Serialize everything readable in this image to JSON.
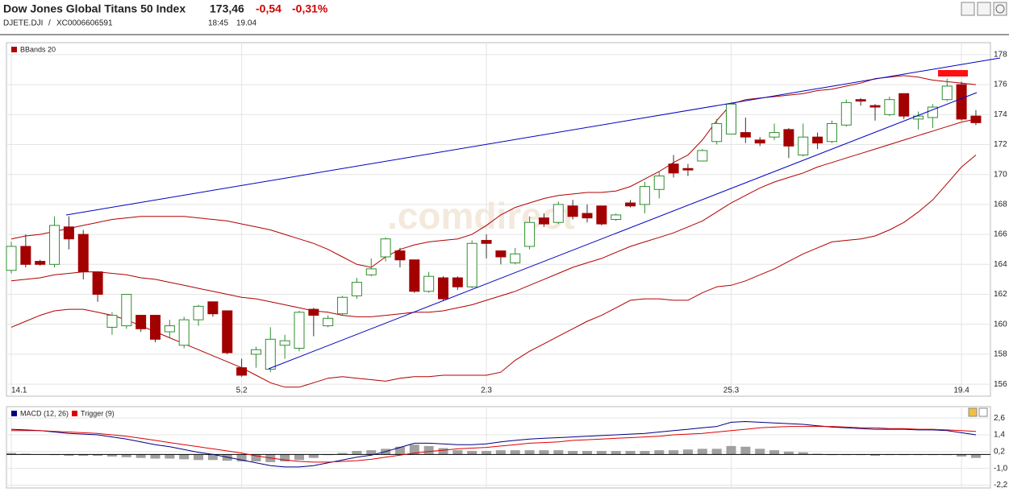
{
  "header": {
    "title": "Dow Jones Global Titans 50 Index",
    "price": "173,46",
    "change": "-0,54",
    "change_percent": "-0,31%",
    "symbol": "DJETE.DJI",
    "separator": "/",
    "isin": "XC0006606591",
    "time": "18:45",
    "date": "19.04"
  },
  "chart_data": [
    {
      "type": "candlestick",
      "watermark": ".comdirect",
      "categories": [
        "14.1",
        null,
        null,
        null,
        null,
        null,
        null,
        null,
        null,
        null,
        null,
        null,
        null,
        null,
        null,
        null,
        "5.2",
        null,
        null,
        null,
        null,
        null,
        null,
        null,
        null,
        null,
        null,
        null,
        null,
        null,
        null,
        null,
        null,
        "2.3",
        null,
        null,
        null,
        null,
        null,
        null,
        null,
        null,
        null,
        null,
        null,
        null,
        null,
        null,
        null,
        null,
        "25.3",
        null,
        null,
        null,
        null,
        null,
        null,
        null,
        null,
        null,
        null,
        null,
        null,
        null,
        null,
        null,
        "19.4",
        null
      ],
      "open": [
        163.6,
        165.2,
        164.2,
        164.0,
        166.5,
        166.0,
        163.5,
        159.8,
        159.9,
        160.6,
        160.6,
        159.5,
        158.6,
        160.3,
        161.5,
        160.9,
        157.1,
        158.0,
        157.0,
        158.6,
        158.4,
        161.0,
        159.9,
        160.7,
        161.9,
        163.3,
        164.5,
        164.9,
        164.3,
        162.2,
        163.1,
        163.1,
        162.5,
        165.6,
        164.9,
        164.1,
        165.2,
        167.1,
        166.8,
        167.9,
        167.4,
        167.9,
        167.0,
        168.1,
        168.0,
        169.0,
        170.7,
        170.4,
        170.9,
        172.2,
        172.7,
        172.8,
        172.3,
        172.5,
        173.0,
        171.3,
        172.5,
        172.2,
        173.3,
        175.0,
        174.6,
        174.0,
        175.4,
        173.7,
        173.8,
        175.0,
        176.0,
        173.9
      ],
      "high": [
        165.5,
        166.0,
        164.3,
        167.2,
        167.2,
        166.3,
        163.5,
        160.8,
        162.0,
        160.6,
        160.6,
        160.3,
        160.5,
        161.3,
        161.5,
        160.9,
        157.7,
        158.5,
        159.8,
        159.3,
        160.9,
        161.1,
        160.6,
        161.9,
        163.1,
        164.4,
        165.8,
        165.1,
        164.3,
        163.5,
        163.2,
        163.2,
        165.6,
        166.0,
        164.9,
        165.1,
        167.2,
        167.4,
        168.2,
        168.3,
        168.0,
        167.9,
        167.4,
        168.3,
        169.5,
        170.2,
        171.3,
        170.7,
        171.7,
        173.7,
        174.8,
        173.8,
        172.5,
        173.4,
        173.1,
        173.4,
        172.8,
        173.6,
        175.0,
        175.1,
        174.7,
        175.2,
        175.4,
        174.2,
        174.7,
        176.4,
        176.2,
        174.3
      ],
      "low": [
        163.4,
        163.8,
        163.9,
        163.8,
        165.0,
        163.0,
        161.5,
        159.3,
        159.7,
        159.5,
        158.8,
        159.1,
        158.4,
        159.9,
        160.5,
        158.0,
        156.5,
        157.1,
        156.8,
        157.7,
        158.2,
        159.2,
        159.8,
        160.6,
        161.7,
        163.2,
        164.2,
        163.8,
        162.1,
        162.1,
        161.6,
        162.3,
        162.4,
        164.4,
        164.0,
        164.0,
        165.0,
        166.5,
        166.7,
        167.0,
        166.8,
        166.6,
        166.9,
        167.8,
        167.4,
        168.4,
        169.8,
        169.9,
        170.9,
        172.0,
        172.7,
        172.1,
        171.9,
        172.3,
        171.1,
        171.2,
        171.7,
        172.1,
        173.2,
        174.6,
        173.6,
        173.9,
        173.7,
        173.0,
        173.1,
        174.9,
        173.6,
        173.3
      ],
      "close": [
        165.2,
        164.0,
        164.0,
        166.6,
        165.7,
        163.5,
        162.0,
        160.6,
        162.0,
        159.7,
        159.0,
        159.9,
        160.3,
        161.2,
        160.7,
        158.1,
        156.6,
        158.3,
        159.0,
        158.9,
        160.8,
        160.6,
        160.4,
        161.8,
        162.8,
        163.7,
        165.7,
        164.3,
        162.2,
        163.2,
        161.7,
        162.5,
        165.4,
        165.4,
        164.5,
        164.7,
        166.8,
        166.7,
        168.0,
        167.2,
        167.1,
        166.7,
        167.3,
        167.9,
        169.2,
        169.9,
        170.1,
        170.3,
        171.6,
        173.4,
        174.7,
        172.5,
        172.1,
        172.8,
        171.9,
        172.5,
        172.1,
        173.4,
        174.8,
        174.9,
        174.5,
        175.0,
        173.9,
        173.9,
        174.5,
        175.9,
        173.7,
        173.46
      ],
      "up_color": "#2f8f2f",
      "down_color": "#a30000",
      "overlays": [
        {
          "name": "BBands 20",
          "color": "#b00000",
          "upper": [
            165.7,
            165.9,
            166.0,
            166.2,
            166.4,
            166.6,
            166.8,
            167.0,
            167.1,
            167.2,
            167.2,
            167.2,
            167.2,
            167.1,
            167.0,
            166.9,
            166.7,
            166.5,
            166.3,
            166.0,
            165.7,
            165.4,
            165.0,
            164.5,
            164.0,
            163.8,
            164.5,
            165.0,
            165.3,
            165.5,
            165.6,
            165.7,
            166.0,
            166.6,
            167.3,
            167.8,
            168.1,
            168.4,
            168.6,
            168.7,
            168.8,
            168.8,
            168.9,
            169.2,
            169.7,
            170.2,
            170.8,
            171.3,
            172.3,
            173.6,
            174.7,
            175.0,
            175.1,
            175.2,
            175.3,
            175.4,
            175.6,
            175.7,
            175.9,
            176.1,
            176.4,
            176.5,
            176.6,
            176.5,
            176.3,
            176.2,
            176.1,
            176.0
          ],
          "middle": [
            162.9,
            163.0,
            163.1,
            163.3,
            163.4,
            163.5,
            163.5,
            163.4,
            163.3,
            163.1,
            163.0,
            162.8,
            162.6,
            162.4,
            162.2,
            162.0,
            161.8,
            161.7,
            161.5,
            161.3,
            161.1,
            160.9,
            160.8,
            160.6,
            160.5,
            160.5,
            160.6,
            160.7,
            160.8,
            160.8,
            160.9,
            161.1,
            161.3,
            161.6,
            161.9,
            162.2,
            162.6,
            163.0,
            163.4,
            163.8,
            164.1,
            164.4,
            164.8,
            165.2,
            165.5,
            165.8,
            166.1,
            166.5,
            166.9,
            167.5,
            168.1,
            168.6,
            169.1,
            169.5,
            169.8,
            170.1,
            170.5,
            170.8,
            171.1,
            171.4,
            171.7,
            172.0,
            172.3,
            172.6,
            172.9,
            173.2,
            173.5,
            173.7
          ],
          "lower": [
            159.8,
            160.2,
            160.6,
            160.9,
            161.0,
            161.0,
            160.8,
            160.6,
            160.3,
            159.9,
            159.5,
            159.1,
            158.7,
            158.3,
            157.9,
            157.5,
            157.1,
            156.6,
            156.1,
            155.8,
            155.8,
            156.1,
            156.4,
            156.5,
            156.4,
            156.3,
            156.2,
            156.4,
            156.5,
            156.5,
            156.6,
            156.6,
            156.6,
            156.6,
            156.8,
            157.6,
            158.2,
            158.7,
            159.2,
            159.7,
            160.2,
            160.6,
            161.1,
            161.6,
            161.7,
            161.7,
            161.6,
            161.6,
            162.1,
            162.5,
            162.6,
            162.9,
            163.3,
            163.7,
            164.2,
            164.7,
            165.1,
            165.5,
            165.6,
            165.7,
            165.9,
            166.3,
            166.8,
            167.5,
            168.3,
            169.4,
            170.5,
            171.3
          ]
        }
      ],
      "ylim": [
        155.2,
        178.8
      ],
      "yticks": [
        156,
        158,
        160,
        162,
        164,
        166,
        168,
        170,
        172,
        174,
        176,
        178
      ],
      "grid": true
    },
    {
      "type": "macd",
      "series": [
        {
          "name": "MACD (12, 26)",
          "color": "#000080",
          "values": [
            1.8,
            1.75,
            1.7,
            1.6,
            1.5,
            1.45,
            1.4,
            1.25,
            1.1,
            0.9,
            0.7,
            0.55,
            0.35,
            0.15,
            0.0,
            -0.2,
            -0.4,
            -0.6,
            -0.8,
            -0.9,
            -0.9,
            -0.8,
            -0.6,
            -0.4,
            -0.2,
            -0.05,
            0.2,
            0.5,
            0.8,
            0.8,
            0.75,
            0.7,
            0.7,
            0.75,
            0.9,
            1.0,
            1.1,
            1.15,
            1.2,
            1.25,
            1.3,
            1.35,
            1.4,
            1.45,
            1.5,
            1.6,
            1.7,
            1.8,
            1.9,
            2.0,
            2.3,
            2.35,
            2.3,
            2.25,
            2.2,
            2.15,
            2.05,
            1.95,
            1.9,
            1.85,
            1.8,
            1.8,
            1.8,
            1.75,
            1.75,
            1.7,
            1.55,
            1.4
          ]
        },
        {
          "name": "Trigger (9)",
          "color": "#e00000",
          "values": [
            1.7,
            1.7,
            1.7,
            1.65,
            1.6,
            1.55,
            1.5,
            1.4,
            1.3,
            1.15,
            1.0,
            0.85,
            0.7,
            0.55,
            0.4,
            0.25,
            0.1,
            -0.1,
            -0.25,
            -0.4,
            -0.5,
            -0.55,
            -0.55,
            -0.5,
            -0.45,
            -0.35,
            -0.2,
            -0.05,
            0.1,
            0.2,
            0.3,
            0.4,
            0.45,
            0.5,
            0.6,
            0.7,
            0.8,
            0.85,
            0.9,
            1.0,
            1.05,
            1.1,
            1.15,
            1.2,
            1.25,
            1.3,
            1.4,
            1.45,
            1.5,
            1.6,
            1.7,
            1.8,
            1.9,
            1.95,
            2.0,
            2.0,
            2.0,
            2.0,
            1.95,
            1.9,
            1.9,
            1.85,
            1.85,
            1.8,
            1.8,
            1.75,
            1.7,
            1.65
          ]
        }
      ],
      "histogram": {
        "color": "#a0a0a0",
        "values": [
          0.1,
          0.05,
          0.0,
          -0.05,
          -0.1,
          -0.1,
          -0.1,
          -0.15,
          -0.2,
          -0.25,
          -0.3,
          -0.3,
          -0.35,
          -0.4,
          -0.4,
          -0.45,
          -0.5,
          -0.5,
          -0.55,
          -0.5,
          -0.4,
          -0.25,
          -0.05,
          0.1,
          0.25,
          0.3,
          0.4,
          0.55,
          0.7,
          0.6,
          0.45,
          0.3,
          0.25,
          0.25,
          0.3,
          0.3,
          0.3,
          0.3,
          0.3,
          0.25,
          0.25,
          0.25,
          0.25,
          0.25,
          0.25,
          0.3,
          0.3,
          0.35,
          0.4,
          0.4,
          0.6,
          0.55,
          0.4,
          0.3,
          0.2,
          0.15,
          0.05,
          -0.05,
          -0.05,
          -0.05,
          -0.1,
          -0.05,
          -0.05,
          -0.05,
          -0.05,
          -0.05,
          -0.15,
          -0.25
        ]
      },
      "ylim": [
        -2.4,
        3.3
      ],
      "yticks": [
        {
          "value": -2.2,
          "label": "-2,2"
        },
        {
          "value": -1.0,
          "label": "-1,0"
        },
        {
          "value": 0.2,
          "label": "0,2"
        },
        {
          "value": 1.4,
          "label": "1,4"
        },
        {
          "value": 2.6,
          "label": "2,6"
        }
      ],
      "grid": true
    }
  ]
}
